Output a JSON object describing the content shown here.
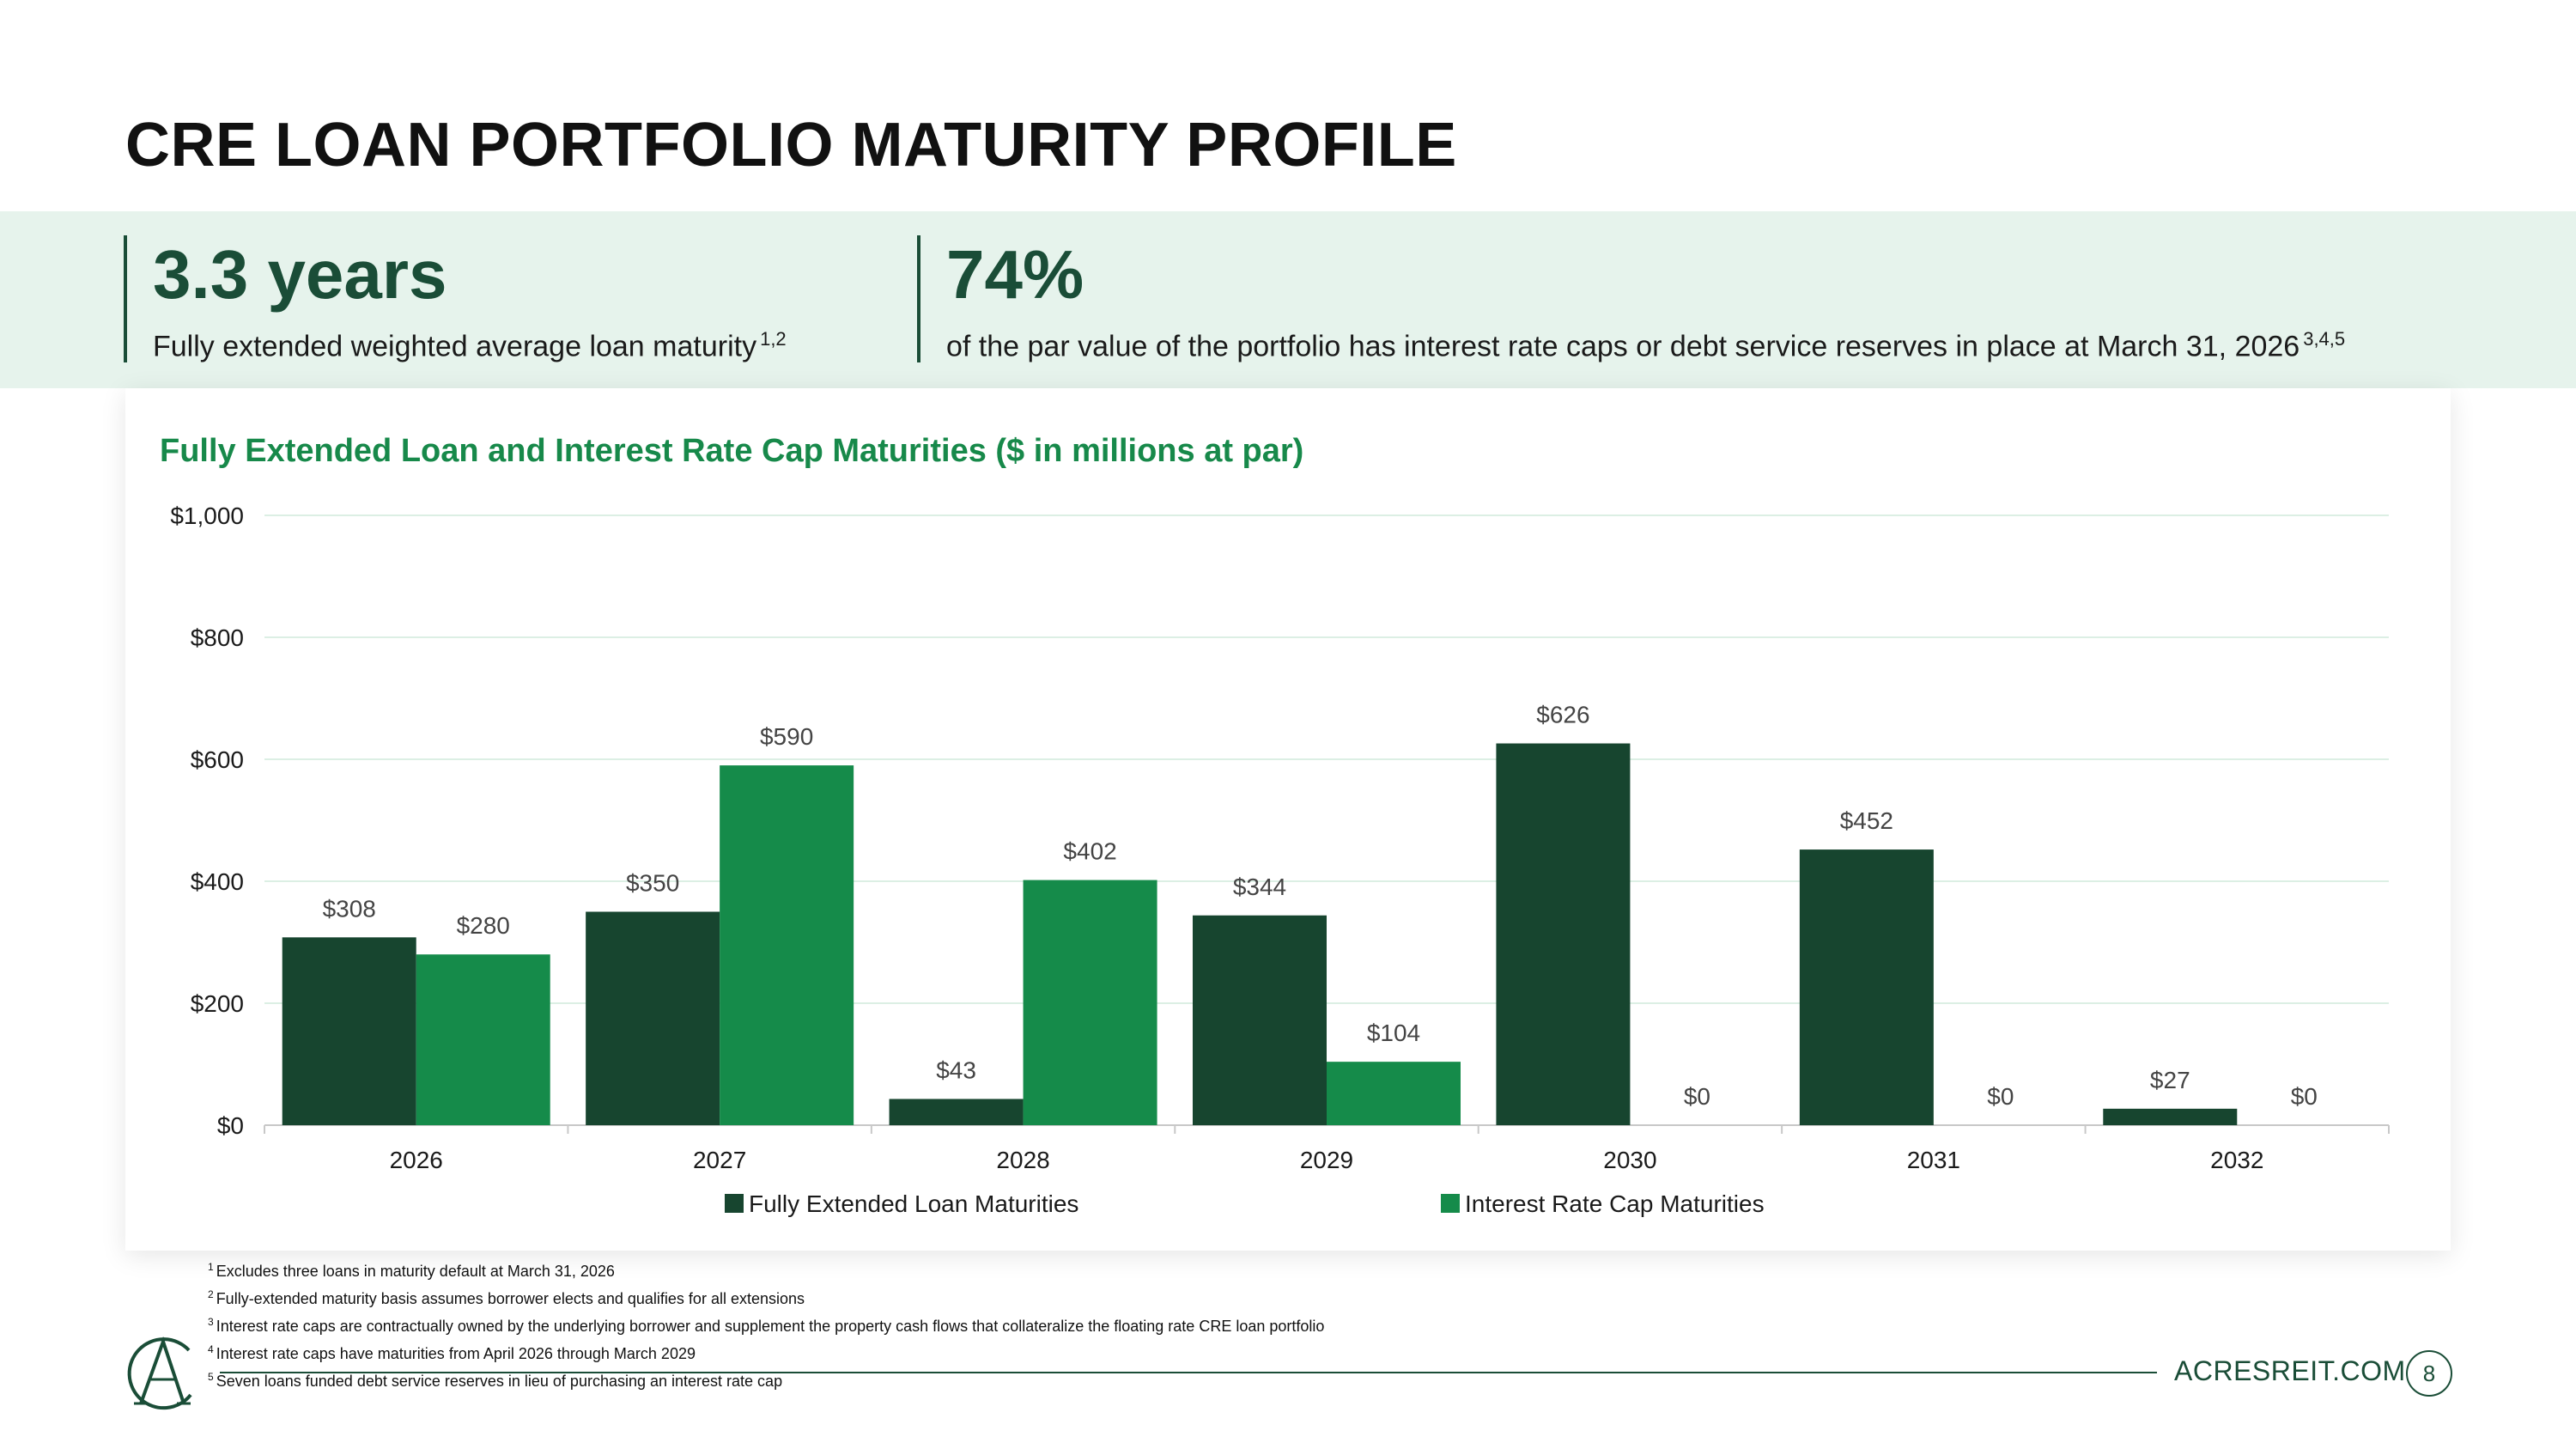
{
  "title": "CRE LOAN PORTFOLIO MATURITY PROFILE",
  "stats": [
    {
      "value": "3.3 years",
      "description": "Fully extended weighted average loan maturity",
      "notes": "1,2"
    },
    {
      "value": "74%",
      "description": "of the par value of the portfolio has interest rate caps or debt service reserves in place at March 31, 2026",
      "notes": "3,4,5"
    }
  ],
  "colors": {
    "dark_green": "#17452f",
    "bright_green": "#158b4a",
    "band_bg": "#e6f3ec",
    "title_green": "#17894a"
  },
  "chart_data": {
    "type": "bar",
    "title": "Fully Extended Loan and Interest Rate Cap Maturities ($ in millions at par)",
    "categories": [
      "2026",
      "2027",
      "2028",
      "2029",
      "2030",
      "2031",
      "2032"
    ],
    "series": [
      {
        "name": "Fully Extended Loan Maturities",
        "values": [
          308,
          350,
          43,
          344,
          626,
          452,
          27
        ],
        "labels": [
          "$308",
          "$350",
          "$43",
          "$344",
          "$626",
          "$452",
          "$27"
        ],
        "color": "#17452f"
      },
      {
        "name": "Interest Rate Cap Maturities",
        "values": [
          280,
          590,
          402,
          104,
          0,
          0,
          0
        ],
        "labels": [
          "$280",
          "$590",
          "$402",
          "$104",
          "$0",
          "$0",
          "$0"
        ],
        "color": "#158b4a"
      }
    ],
    "yticks": [
      0,
      200,
      400,
      600,
      800,
      1000
    ],
    "ytick_labels": [
      "$0",
      "$200",
      "$400",
      "$600",
      "$800",
      "$1,000"
    ],
    "ylim": [
      0,
      1000
    ],
    "grid": true,
    "legend": "bottom-center"
  },
  "footnotes": [
    {
      "num": "1",
      "text": "Excludes three loans in maturity default at March 31, 2026"
    },
    {
      "num": "2",
      "text": "Fully-extended maturity basis assumes borrower elects and qualifies for all extensions"
    },
    {
      "num": "3",
      "text": "Interest rate caps are contractually owned by the underlying borrower and supplement the property cash flows that collateralize the floating rate CRE loan portfolio"
    },
    {
      "num": "4",
      "text": "Interest rate caps have maturities from April 2026 through March 2029"
    },
    {
      "num": "5",
      "text": "Seven loans funded debt service reserves in lieu of purchasing an interest rate cap"
    }
  ],
  "footer": {
    "website": "ACRESREIT.COM",
    "page": "8",
    "logo_icon": "acres-monogram-logo"
  }
}
